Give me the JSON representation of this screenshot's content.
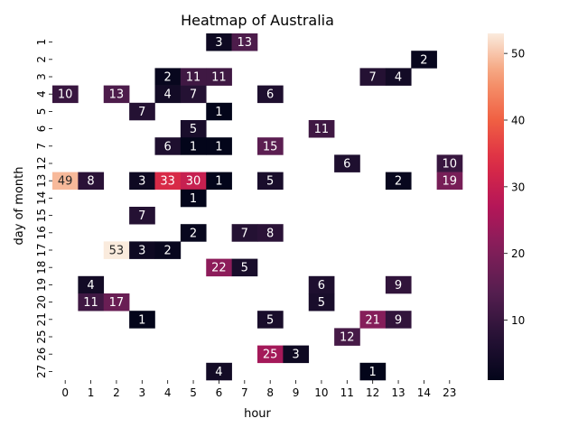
{
  "chart_data": {
    "type": "heatmap",
    "title": "Heatmap of Australia",
    "xlabel": "hour",
    "ylabel": "day of month",
    "x_categories": [
      "0",
      "1",
      "2",
      "3",
      "4",
      "5",
      "6",
      "7",
      "8",
      "9",
      "10",
      "11",
      "12",
      "13",
      "14",
      "23"
    ],
    "y_categories": [
      "1",
      "2",
      "3",
      "4",
      "5",
      "6",
      "7",
      "12",
      "13",
      "14",
      "15",
      "16",
      "17",
      "18",
      "19",
      "20",
      "21",
      "25",
      "26",
      "27"
    ],
    "cells": [
      {
        "y": "1",
        "x": "6",
        "value": 3
      },
      {
        "y": "1",
        "x": "7",
        "value": 13
      },
      {
        "y": "2",
        "x": "14",
        "value": 2
      },
      {
        "y": "3",
        "x": "4",
        "value": 2
      },
      {
        "y": "3",
        "x": "5",
        "value": 11
      },
      {
        "y": "3",
        "x": "6",
        "value": 11
      },
      {
        "y": "3",
        "x": "12",
        "value": 7
      },
      {
        "y": "3",
        "x": "13",
        "value": 4
      },
      {
        "y": "4",
        "x": "0",
        "value": 10
      },
      {
        "y": "4",
        "x": "2",
        "value": 13
      },
      {
        "y": "4",
        "x": "4",
        "value": 4
      },
      {
        "y": "4",
        "x": "5",
        "value": 7
      },
      {
        "y": "4",
        "x": "8",
        "value": 6
      },
      {
        "y": "5",
        "x": "3",
        "value": 7
      },
      {
        "y": "5",
        "x": "6",
        "value": 1
      },
      {
        "y": "6",
        "x": "5",
        "value": 5
      },
      {
        "y": "6",
        "x": "10",
        "value": 11
      },
      {
        "y": "7",
        "x": "4",
        "value": 6
      },
      {
        "y": "7",
        "x": "5",
        "value": 1
      },
      {
        "y": "7",
        "x": "6",
        "value": 1
      },
      {
        "y": "7",
        "x": "8",
        "value": 15
      },
      {
        "y": "12",
        "x": "11",
        "value": 6
      },
      {
        "y": "12",
        "x": "23",
        "value": 10
      },
      {
        "y": "13",
        "x": "0",
        "value": 49
      },
      {
        "y": "13",
        "x": "1",
        "value": 8
      },
      {
        "y": "13",
        "x": "3",
        "value": 3
      },
      {
        "y": "13",
        "x": "4",
        "value": 33
      },
      {
        "y": "13",
        "x": "5",
        "value": 30
      },
      {
        "y": "13",
        "x": "6",
        "value": 1
      },
      {
        "y": "13",
        "x": "8",
        "value": 5
      },
      {
        "y": "13",
        "x": "13",
        "value": 2
      },
      {
        "y": "13",
        "x": "23",
        "value": 19
      },
      {
        "y": "14",
        "x": "5",
        "value": 1
      },
      {
        "y": "15",
        "x": "3",
        "value": 7
      },
      {
        "y": "16",
        "x": "5",
        "value": 2
      },
      {
        "y": "16",
        "x": "7",
        "value": 7
      },
      {
        "y": "16",
        "x": "8",
        "value": 8
      },
      {
        "y": "17",
        "x": "2",
        "value": 53
      },
      {
        "y": "17",
        "x": "3",
        "value": 3
      },
      {
        "y": "17",
        "x": "4",
        "value": 2
      },
      {
        "y": "18",
        "x": "6",
        "value": 22
      },
      {
        "y": "18",
        "x": "7",
        "value": 5
      },
      {
        "y": "19",
        "x": "1",
        "value": 4
      },
      {
        "y": "19",
        "x": "10",
        "value": 6
      },
      {
        "y": "19",
        "x": "13",
        "value": 9
      },
      {
        "y": "20",
        "x": "1",
        "value": 11
      },
      {
        "y": "20",
        "x": "2",
        "value": 17
      },
      {
        "y": "20",
        "x": "10",
        "value": 5
      },
      {
        "y": "21",
        "x": "3",
        "value": 1
      },
      {
        "y": "21",
        "x": "8",
        "value": 5
      },
      {
        "y": "21",
        "x": "12",
        "value": 21
      },
      {
        "y": "21",
        "x": "13",
        "value": 9
      },
      {
        "y": "25",
        "x": "11",
        "value": 12
      },
      {
        "y": "26",
        "x": "8",
        "value": 25
      },
      {
        "y": "26",
        "x": "9",
        "value": 3
      },
      {
        "y": "27",
        "x": "6",
        "value": 4
      },
      {
        "y": "27",
        "x": "12",
        "value": 1
      }
    ],
    "colorbar": {
      "range": [
        1,
        53
      ],
      "ticks": [
        10,
        20,
        30,
        40,
        50
      ],
      "colormap": "rocket"
    },
    "grid": false,
    "legend": "colorbar-right"
  }
}
